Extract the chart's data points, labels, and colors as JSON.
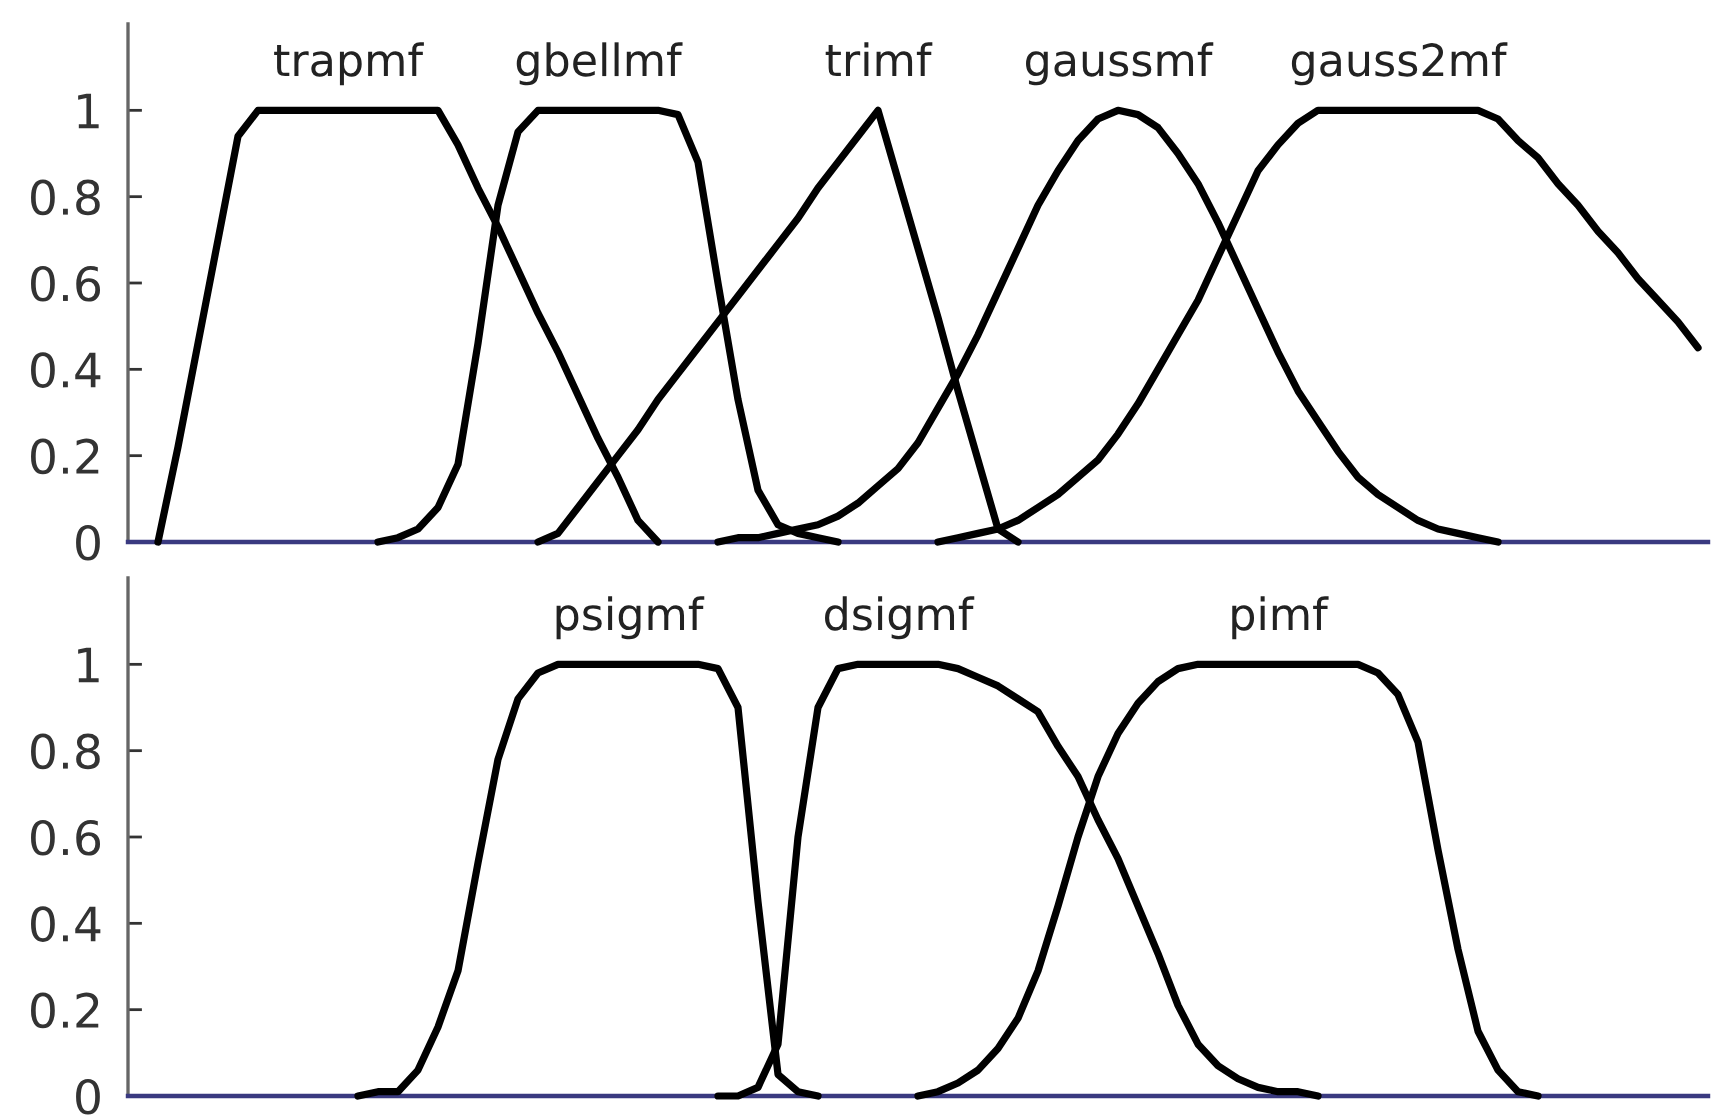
{
  "chart_data": [
    {
      "type": "line",
      "tick_labels": "y",
      "ylim": [
        0,
        1.2
      ],
      "yticks": [
        0,
        0.2,
        0.4,
        0.6,
        0.8,
        1
      ],
      "categories": [
        null,
        null,
        null,
        null,
        null,
        null,
        null,
        null,
        null,
        null,
        null,
        null,
        null,
        null,
        null,
        null,
        null,
        null,
        null,
        null,
        null,
        null,
        null,
        null,
        null,
        null,
        null,
        null,
        null,
        null,
        null,
        null,
        null,
        null,
        null,
        null,
        null,
        null,
        null,
        null,
        null,
        null,
        null,
        null,
        null,
        null,
        null,
        null,
        null,
        null,
        null,
        null,
        null,
        null,
        null,
        null,
        null,
        null,
        null,
        null,
        null,
        null,
        null,
        null,
        null,
        null,
        null,
        null,
        null,
        null,
        null,
        null,
        null,
        null,
        null,
        null,
        null,
        null,
        null
      ],
      "series": [
        {
          "name": "trapmf",
          "color": "#000000",
          "values": [
            null,
            0,
            0.22,
            0.46,
            0.7,
            0.94,
            1,
            1,
            1,
            1,
            1,
            1,
            1,
            1,
            1,
            1,
            0.92,
            0.82,
            0.73,
            0.63,
            0.53,
            0.44,
            0.34,
            0.24,
            0.15,
            0.05,
            0,
            null,
            null,
            null,
            null,
            null,
            null,
            null,
            null,
            null,
            null,
            null,
            null,
            null,
            null,
            null,
            null,
            null,
            null,
            null,
            null,
            null,
            null,
            null,
            null,
            null,
            null,
            null,
            null,
            null,
            null,
            null,
            null,
            null,
            null,
            null,
            null,
            null,
            null,
            null,
            null,
            null,
            null,
            null,
            null,
            null,
            null,
            null,
            null,
            null,
            null,
            null,
            null
          ]
        },
        {
          "name": "gbellmf",
          "color": "#000000",
          "values": [
            null,
            null,
            null,
            null,
            null,
            null,
            null,
            null,
            null,
            null,
            null,
            null,
            0,
            0.01,
            0.03,
            0.08,
            0.18,
            0.46,
            0.78,
            0.95,
            1,
            1,
            1,
            1,
            1,
            1,
            1,
            0.99,
            0.88,
            0.6,
            0.33,
            0.12,
            0.04,
            0.02,
            0.01,
            0,
            null,
            null,
            null,
            null,
            null,
            null,
            null,
            null,
            null,
            null,
            null,
            null,
            null,
            null,
            null,
            null,
            null,
            null,
            null,
            null,
            null,
            null,
            null,
            null,
            null,
            null,
            null,
            null,
            null,
            null,
            null,
            null,
            null,
            null,
            null,
            null,
            null,
            null,
            null,
            null,
            null,
            null,
            null
          ]
        },
        {
          "name": "trimf",
          "color": "#000000",
          "values": [
            null,
            null,
            null,
            null,
            null,
            null,
            null,
            null,
            null,
            null,
            null,
            null,
            null,
            null,
            null,
            null,
            null,
            null,
            null,
            null,
            0,
            0.02,
            0.08,
            0.14,
            0.2,
            0.26,
            0.33,
            0.39,
            0.45,
            0.51,
            0.57,
            0.63,
            0.69,
            0.75,
            0.82,
            0.88,
            0.94,
            1,
            0.84,
            0.68,
            0.52,
            0.35,
            0.19,
            0.03,
            0,
            null,
            null,
            null,
            null,
            null,
            null,
            null,
            null,
            null,
            null,
            null,
            null,
            null,
            null,
            null,
            null,
            null,
            null,
            null,
            null,
            null,
            null,
            null,
            null,
            null,
            null,
            null,
            null,
            null,
            null,
            null,
            null,
            null,
            null
          ]
        },
        {
          "name": "gaussmf",
          "color": "#000000",
          "values": [
            null,
            null,
            null,
            null,
            null,
            null,
            null,
            null,
            null,
            null,
            null,
            null,
            null,
            null,
            null,
            null,
            null,
            null,
            null,
            null,
            null,
            null,
            null,
            null,
            null,
            null,
            null,
            null,
            null,
            0,
            0.01,
            0.01,
            0.02,
            0.03,
            0.04,
            0.06,
            0.09,
            0.13,
            0.17,
            0.23,
            0.31,
            0.39,
            0.48,
            0.58,
            0.68,
            0.78,
            0.86,
            0.93,
            0.98,
            1,
            0.99,
            0.96,
            0.9,
            0.83,
            0.74,
            0.64,
            0.54,
            0.44,
            0.35,
            0.28,
            0.21,
            0.15,
            0.11,
            0.08,
            0.05,
            0.03,
            0.02,
            0.01,
            0,
            null,
            null,
            null,
            null,
            null,
            null,
            null,
            null,
            null,
            null
          ]
        },
        {
          "name": "gauss2mf",
          "color": "#000000",
          "values": [
            null,
            null,
            null,
            null,
            null,
            null,
            null,
            null,
            null,
            null,
            null,
            null,
            null,
            null,
            null,
            null,
            null,
            null,
            null,
            null,
            null,
            null,
            null,
            null,
            null,
            null,
            null,
            null,
            null,
            null,
            null,
            null,
            null,
            null,
            null,
            null,
            null,
            null,
            null,
            null,
            0,
            0.01,
            0.02,
            0.03,
            0.05,
            0.08,
            0.11,
            0.15,
            0.19,
            0.25,
            0.32,
            0.4,
            0.48,
            0.56,
            0.66,
            0.76,
            0.86,
            0.92,
            0.97,
            1,
            1,
            1,
            1,
            1,
            1,
            1,
            1,
            1,
            0.98,
            0.93,
            0.89,
            0.83,
            0.78,
            0.72,
            0.67,
            0.61,
            0.56,
            0.51,
            0.45
          ]
        }
      ]
    },
    {
      "type": "line",
      "tick_labels": "y",
      "ylim": [
        0,
        1.2
      ],
      "yticks": [
        0,
        0.2,
        0.4,
        0.6,
        0.8,
        1
      ],
      "categories": [
        null,
        null,
        null,
        null,
        null,
        null,
        null,
        null,
        null,
        null,
        null,
        null,
        null,
        null,
        null,
        null,
        null,
        null,
        null,
        null,
        null,
        null,
        null,
        null,
        null,
        null,
        null,
        null,
        null,
        null,
        null,
        null,
        null,
        null,
        null,
        null,
        null,
        null,
        null,
        null,
        null,
        null,
        null,
        null,
        null,
        null,
        null,
        null,
        null,
        null,
        null,
        null,
        null,
        null,
        null,
        null,
        null,
        null,
        null,
        null,
        null,
        null,
        null,
        null,
        null,
        null,
        null,
        null,
        null,
        null,
        null,
        null,
        null,
        null,
        null,
        null,
        null,
        null,
        null
      ],
      "series": [
        {
          "name": "psigmf",
          "color": "#000000",
          "values": [
            null,
            null,
            null,
            null,
            null,
            null,
            null,
            null,
            null,
            null,
            null,
            0,
            0.01,
            0.01,
            0.06,
            0.16,
            0.29,
            0.54,
            0.78,
            0.92,
            0.98,
            1,
            1,
            1,
            1,
            1,
            1,
            1,
            1,
            0.99,
            0.9,
            0.45,
            0.05,
            0.01,
            0,
            null,
            null,
            null,
            null,
            null,
            null,
            null,
            null,
            null,
            null,
            null,
            null,
            null,
            null,
            null,
            null,
            null,
            null,
            null,
            null,
            null,
            null,
            null,
            null,
            null,
            null,
            null,
            null,
            null,
            null,
            null,
            null,
            null,
            null,
            null,
            null,
            null,
            null,
            null,
            null,
            null,
            null,
            null,
            null
          ]
        },
        {
          "name": "dsigmf",
          "color": "#000000",
          "values": [
            null,
            null,
            null,
            null,
            null,
            null,
            null,
            null,
            null,
            null,
            null,
            null,
            null,
            null,
            null,
            null,
            null,
            null,
            null,
            null,
            null,
            null,
            null,
            null,
            null,
            null,
            null,
            null,
            null,
            0,
            0,
            0.02,
            0.12,
            0.6,
            0.9,
            0.99,
            1,
            1,
            1,
            1,
            1,
            0.99,
            0.97,
            0.95,
            0.92,
            0.89,
            0.81,
            0.74,
            0.64,
            0.55,
            0.44,
            0.33,
            0.21,
            0.12,
            0.07,
            0.04,
            0.02,
            0.01,
            0.01,
            0,
            null,
            null,
            null,
            null,
            null,
            null,
            null,
            null,
            null,
            null,
            null,
            null,
            null,
            null,
            null,
            null,
            null,
            null,
            null
          ]
        },
        {
          "name": "pimf",
          "color": "#000000",
          "values": [
            null,
            null,
            null,
            null,
            null,
            null,
            null,
            null,
            null,
            null,
            null,
            null,
            null,
            null,
            null,
            null,
            null,
            null,
            null,
            null,
            null,
            null,
            null,
            null,
            null,
            null,
            null,
            null,
            null,
            null,
            null,
            null,
            null,
            null,
            null,
            null,
            null,
            null,
            null,
            0,
            0.01,
            0.03,
            0.06,
            0.11,
            0.18,
            0.29,
            0.44,
            0.6,
            0.74,
            0.84,
            0.91,
            0.96,
            0.99,
            1,
            1,
            1,
            1,
            1,
            1,
            1,
            1,
            1,
            0.98,
            0.93,
            0.82,
            0.57,
            0.34,
            0.15,
            0.06,
            0.01,
            0,
            null,
            null,
            null,
            null,
            null,
            null,
            null,
            null
          ]
        }
      ]
    }
  ]
}
